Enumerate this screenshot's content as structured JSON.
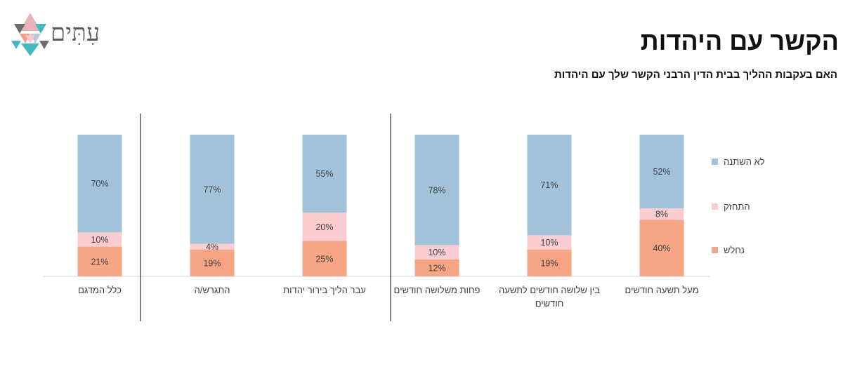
{
  "header": {
    "title": "הקשר עם היהדות",
    "subtitle": "האם בעקבות ההליך בבית הדין הרבני הקשר שלך עם היהדות"
  },
  "logo": {
    "text": "עִתִּים"
  },
  "colors": {
    "no_change": "#a2c4da",
    "strengthened": "#fbcdd0",
    "weakened": "#f6a585",
    "axis": "#d9d9d9",
    "divider": "#333333",
    "label": "#404040"
  },
  "chart_data": {
    "type": "bar",
    "stacked": true,
    "ylim": [
      0,
      100
    ],
    "categories": [
      "כלל המדגם",
      "התגרש/ה",
      "עבר הליך בירור יהדות",
      "פחות משלושה חודשים",
      "בין שלושה חודשים לתשעה חודשים",
      "מעל תשעה חודשים"
    ],
    "series": [
      {
        "name": "נחלש",
        "color": "#f6a585",
        "values": [
          21,
          19,
          25,
          12,
          19,
          40
        ],
        "labels": [
          "21%",
          "19%",
          "25%",
          "12%",
          "19%",
          "40%"
        ]
      },
      {
        "name": "התחזק",
        "color": "#fbcdd0",
        "values": [
          10,
          4,
          20,
          10,
          10,
          8
        ],
        "labels": [
          "10%",
          "4%",
          "20%",
          "10%",
          "10%",
          "8%"
        ]
      },
      {
        "name": "לא השתנה",
        "color": "#a2c4da",
        "values": [
          70,
          77,
          55,
          78,
          71,
          52
        ],
        "labels": [
          "70%",
          "77%",
          "55%",
          "78%",
          "71%",
          "52%"
        ]
      }
    ],
    "legend": {
      "position": "right",
      "entries": [
        "לא השתנה",
        "התחזק",
        "נחלש"
      ]
    },
    "grid": false
  }
}
